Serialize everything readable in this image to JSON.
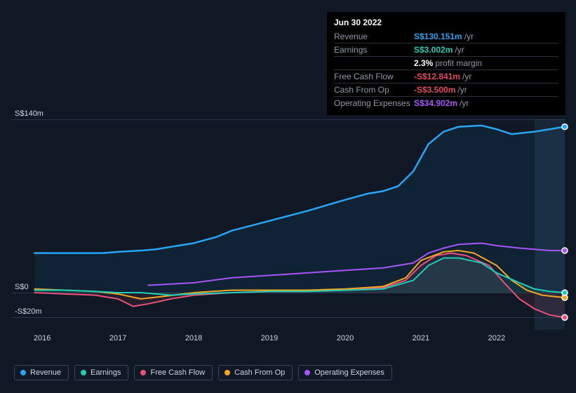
{
  "tooltip": {
    "date": "Jun 30 2022",
    "rows": [
      {
        "label": "Revenue",
        "value": "S$130.151m",
        "color": "#2aa4f4",
        "suffix": "/yr"
      },
      {
        "label": "Earnings",
        "value": "S$3.002m",
        "color": "#1fceb6",
        "suffix": "/yr"
      },
      {
        "label": "",
        "value": "2.3%",
        "color": "#ffffff",
        "suffix": "profit margin"
      },
      {
        "label": "Free Cash Flow",
        "value": "-S$12.841m",
        "color": "#e14a63",
        "suffix": "/yr"
      },
      {
        "label": "Cash From Op",
        "value": "-S$3.500m",
        "color": "#e14a63",
        "suffix": "/yr"
      },
      {
        "label": "Operating Expenses",
        "value": "S$34.902m",
        "color": "#a855f7",
        "suffix": "/yr"
      }
    ]
  },
  "chart": {
    "type": "line",
    "background_color": "#0f1824",
    "grid_color": "#2b3647",
    "xlim": [
      2015.6,
      2022.9
    ],
    "ylim": [
      -30,
      140
    ],
    "yticks": [
      {
        "v": 140,
        "label": "S$140m"
      },
      {
        "v": 0,
        "label": "S$0"
      },
      {
        "v": -20,
        "label": "-S$20m"
      }
    ],
    "xticks": [
      2016,
      2017,
      2018,
      2019,
      2020,
      2021,
      2022
    ],
    "future_start": 2022.5,
    "series": [
      {
        "name": "Revenue",
        "color": "#2aa4f4",
        "fill": "rgba(42,164,244,0.08)",
        "width": 2.5,
        "end_dot": true,
        "points": [
          [
            2015.9,
            32
          ],
          [
            2016.2,
            32
          ],
          [
            2016.5,
            32
          ],
          [
            2016.8,
            32
          ],
          [
            2017.0,
            33
          ],
          [
            2017.3,
            34
          ],
          [
            2017.5,
            35
          ],
          [
            2018.0,
            40
          ],
          [
            2018.3,
            45
          ],
          [
            2018.5,
            50
          ],
          [
            2019.0,
            58
          ],
          [
            2019.5,
            66
          ],
          [
            2020.0,
            75
          ],
          [
            2020.3,
            80
          ],
          [
            2020.5,
            82
          ],
          [
            2020.7,
            86
          ],
          [
            2020.9,
            98
          ],
          [
            2021.1,
            120
          ],
          [
            2021.3,
            130
          ],
          [
            2021.5,
            134
          ],
          [
            2021.8,
            135
          ],
          [
            2022.0,
            132
          ],
          [
            2022.2,
            128
          ],
          [
            2022.5,
            130
          ],
          [
            2022.7,
            132
          ],
          [
            2022.9,
            134
          ]
        ]
      },
      {
        "name": "Operating Expenses",
        "color": "#a855f7",
        "fill": null,
        "width": 2,
        "end_dot": true,
        "points": [
          [
            2017.4,
            6
          ],
          [
            2017.7,
            7
          ],
          [
            2018.0,
            8
          ],
          [
            2018.5,
            12
          ],
          [
            2019.0,
            14
          ],
          [
            2019.5,
            16
          ],
          [
            2020.0,
            18
          ],
          [
            2020.5,
            20
          ],
          [
            2020.9,
            24
          ],
          [
            2021.1,
            32
          ],
          [
            2021.3,
            36
          ],
          [
            2021.5,
            39
          ],
          [
            2021.8,
            40
          ],
          [
            2022.0,
            38
          ],
          [
            2022.3,
            36
          ],
          [
            2022.5,
            35
          ],
          [
            2022.7,
            34
          ],
          [
            2022.9,
            34
          ]
        ]
      },
      {
        "name": "Free Cash Flow",
        "color": "#e6527a",
        "fill": "rgba(230,82,122,0.10)",
        "width": 2,
        "end_dot": true,
        "points": [
          [
            2015.9,
            0
          ],
          [
            2016.3,
            -1
          ],
          [
            2016.7,
            -2
          ],
          [
            2017.0,
            -5
          ],
          [
            2017.2,
            -11
          ],
          [
            2017.4,
            -9
          ],
          [
            2017.7,
            -5
          ],
          [
            2018.0,
            -2
          ],
          [
            2018.5,
            0
          ],
          [
            2019.0,
            1
          ],
          [
            2019.5,
            1
          ],
          [
            2020.0,
            2
          ],
          [
            2020.5,
            4
          ],
          [
            2020.8,
            10
          ],
          [
            2021.0,
            22
          ],
          [
            2021.2,
            30
          ],
          [
            2021.4,
            32
          ],
          [
            2021.6,
            30
          ],
          [
            2021.9,
            22
          ],
          [
            2022.1,
            8
          ],
          [
            2022.3,
            -5
          ],
          [
            2022.5,
            -13
          ],
          [
            2022.7,
            -18
          ],
          [
            2022.9,
            -20
          ]
        ]
      },
      {
        "name": "Cash From Op",
        "color": "#f5a623",
        "fill": null,
        "width": 2,
        "end_dot": true,
        "points": [
          [
            2015.9,
            3
          ],
          [
            2016.3,
            2
          ],
          [
            2016.7,
            1
          ],
          [
            2017.0,
            -1
          ],
          [
            2017.3,
            -5
          ],
          [
            2017.6,
            -3
          ],
          [
            2018.0,
            0
          ],
          [
            2018.5,
            2
          ],
          [
            2019.0,
            2
          ],
          [
            2019.5,
            2
          ],
          [
            2020.0,
            3
          ],
          [
            2020.5,
            5
          ],
          [
            2020.8,
            12
          ],
          [
            2021.0,
            26
          ],
          [
            2021.3,
            33
          ],
          [
            2021.5,
            34
          ],
          [
            2021.7,
            32
          ],
          [
            2022.0,
            22
          ],
          [
            2022.2,
            10
          ],
          [
            2022.4,
            2
          ],
          [
            2022.6,
            -2
          ],
          [
            2022.9,
            -4
          ]
        ]
      },
      {
        "name": "Earnings",
        "color": "#1fceb6",
        "fill": "rgba(31,206,182,0.10)",
        "width": 2,
        "end_dot": true,
        "points": [
          [
            2015.9,
            2
          ],
          [
            2016.3,
            2
          ],
          [
            2016.7,
            1
          ],
          [
            2017.0,
            0
          ],
          [
            2017.3,
            0
          ],
          [
            2017.7,
            -2
          ],
          [
            2018.0,
            -1
          ],
          [
            2018.5,
            0
          ],
          [
            2019.0,
            1
          ],
          [
            2019.5,
            1
          ],
          [
            2020.0,
            2
          ],
          [
            2020.5,
            3
          ],
          [
            2020.9,
            10
          ],
          [
            2021.1,
            22
          ],
          [
            2021.3,
            28
          ],
          [
            2021.5,
            28
          ],
          [
            2021.8,
            24
          ],
          [
            2022.0,
            16
          ],
          [
            2022.3,
            8
          ],
          [
            2022.5,
            3
          ],
          [
            2022.7,
            1
          ],
          [
            2022.9,
            0
          ]
        ]
      }
    ],
    "legend": [
      {
        "label": "Revenue",
        "color": "#2aa4f4"
      },
      {
        "label": "Earnings",
        "color": "#1fceb6"
      },
      {
        "label": "Free Cash Flow",
        "color": "#e6527a"
      },
      {
        "label": "Cash From Op",
        "color": "#f5a623"
      },
      {
        "label": "Operating Expenses",
        "color": "#a855f7"
      }
    ]
  }
}
